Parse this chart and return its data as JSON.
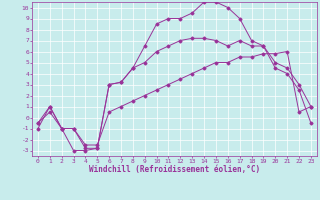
{
  "bg_color": "#c8ecec",
  "line_color": "#993399",
  "grid_color": "#ffffff",
  "xlim": [
    -0.5,
    23.5
  ],
  "ylim": [
    -3.5,
    10.5
  ],
  "xticks": [
    0,
    1,
    2,
    3,
    4,
    5,
    6,
    7,
    8,
    9,
    10,
    11,
    12,
    13,
    14,
    15,
    16,
    17,
    18,
    19,
    20,
    21,
    22,
    23
  ],
  "yticks": [
    -3,
    -2,
    -1,
    0,
    1,
    2,
    3,
    4,
    5,
    6,
    7,
    8,
    9,
    10
  ],
  "line1_x": [
    0,
    1,
    2,
    3,
    4,
    5,
    6,
    7,
    8,
    9,
    10,
    11,
    12,
    13,
    14,
    15,
    16,
    17,
    18,
    19,
    20,
    21,
    22,
    23
  ],
  "line1_y": [
    -0.5,
    1.0,
    -1.0,
    -3.0,
    -3.0,
    -2.8,
    3.0,
    3.2,
    4.5,
    6.5,
    8.5,
    9.0,
    9.0,
    9.5,
    10.5,
    10.5,
    10.0,
    9.0,
    7.0,
    6.5,
    4.5,
    4.0,
    2.5,
    -0.5
  ],
  "line2_x": [
    0,
    1,
    2,
    3,
    4,
    5,
    6,
    7,
    8,
    9,
    10,
    11,
    12,
    13,
    14,
    15,
    16,
    17,
    18,
    19,
    20,
    21,
    22,
    23
  ],
  "line2_y": [
    -1.0,
    1.0,
    -1.0,
    -1.0,
    -2.8,
    -2.8,
    3.0,
    3.2,
    4.5,
    5.0,
    6.0,
    6.5,
    7.0,
    7.2,
    7.2,
    7.0,
    6.5,
    7.0,
    6.5,
    6.5,
    5.0,
    4.5,
    3.0,
    1.0
  ],
  "line3_x": [
    0,
    1,
    2,
    3,
    4,
    5,
    6,
    7,
    8,
    9,
    10,
    11,
    12,
    13,
    14,
    15,
    16,
    17,
    18,
    19,
    20,
    21,
    22,
    23
  ],
  "line3_y": [
    -0.5,
    0.5,
    -1.0,
    -1.0,
    -2.5,
    -2.5,
    0.5,
    1.0,
    1.5,
    2.0,
    2.5,
    3.0,
    3.5,
    4.0,
    4.5,
    5.0,
    5.0,
    5.5,
    5.5,
    5.8,
    5.8,
    6.0,
    0.5,
    1.0
  ],
  "xlabel": "Windchill (Refroidissement éolien,°C)",
  "tick_fontsize": 4.5,
  "xlabel_fontsize": 5.5,
  "marker": "D",
  "markersize": 1.5,
  "linewidth": 0.7
}
